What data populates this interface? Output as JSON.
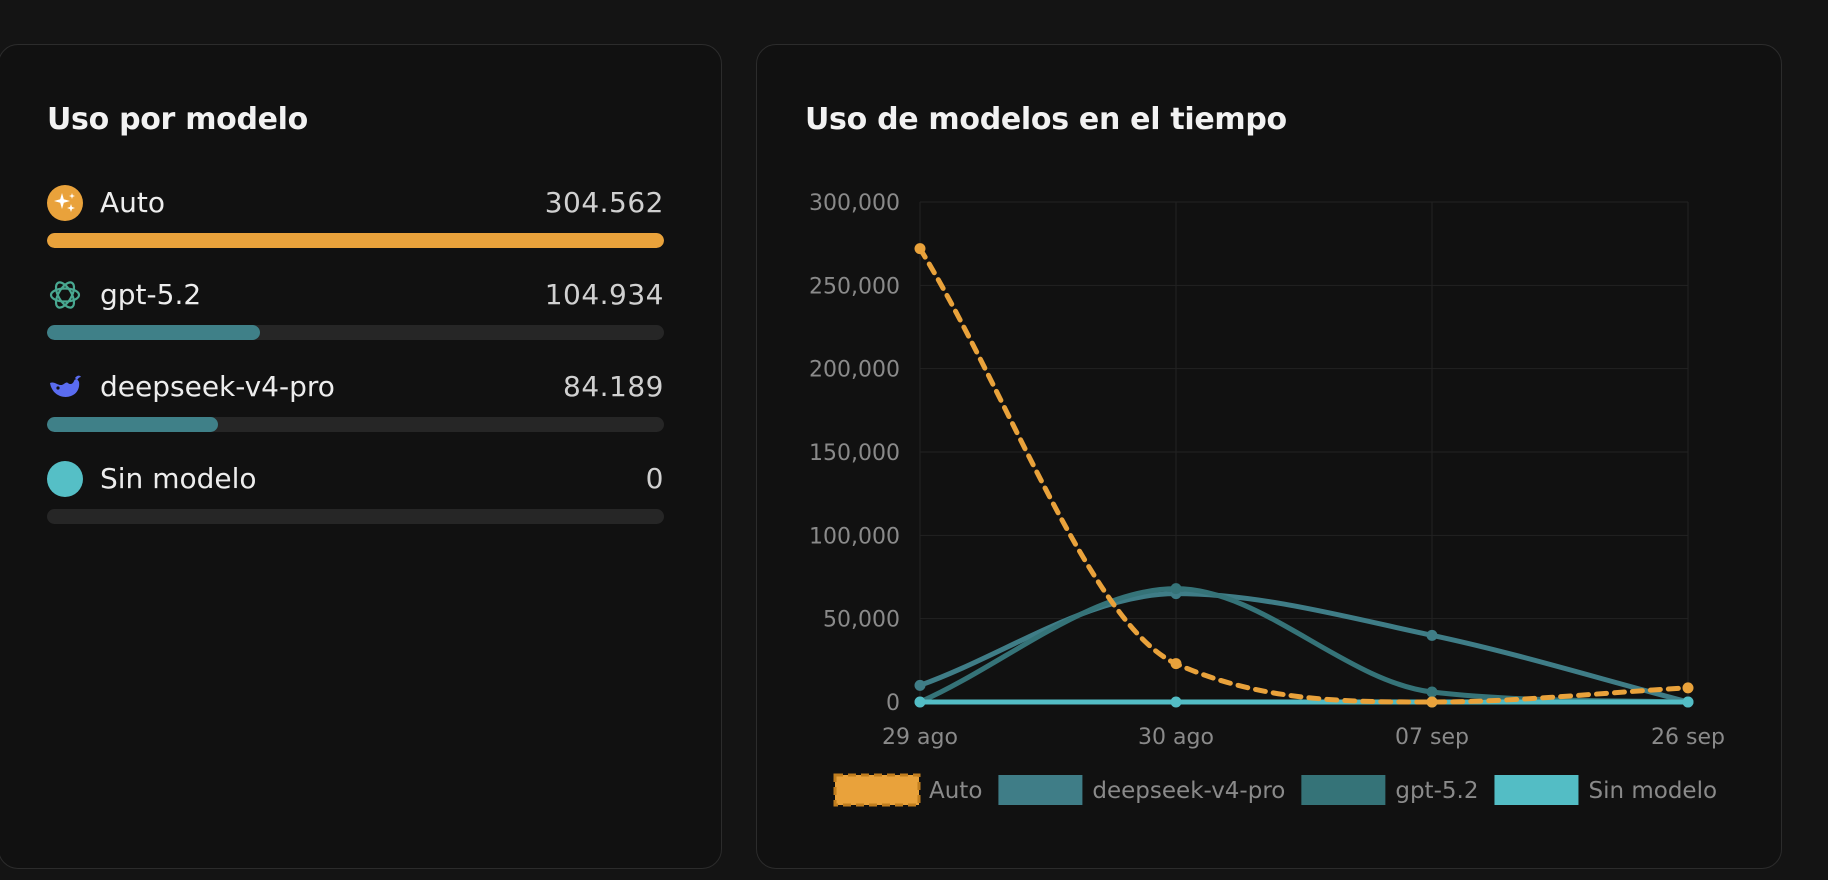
{
  "left_card": {
    "title": "Uso por modelo",
    "max_value": 304562,
    "models": [
      {
        "name": "Auto",
        "value_label": "304.562",
        "value": 304562,
        "icon": "sparkles-icon",
        "color": "#e9a23b"
      },
      {
        "name": "gpt-5.2",
        "value_label": "104.934",
        "value": 104934,
        "icon": "openai-icon",
        "color": "#3f8088"
      },
      {
        "name": "deepseek-v4-pro",
        "value_label": "84.189",
        "value": 84189,
        "icon": "deepseek-whale-icon",
        "color": "#3f8088"
      },
      {
        "name": "Sin modelo",
        "value_label": "0",
        "value": 0,
        "icon": "circle-icon",
        "color": "#55bfc6"
      }
    ]
  },
  "right_card": {
    "title": "Uso de modelos en el tiempo"
  },
  "chart_data": {
    "type": "line",
    "title": "Uso de modelos en el tiempo",
    "x": [
      "29 ago",
      "30 ago",
      "07 sep",
      "26 sep"
    ],
    "ylim": [
      0,
      300000
    ],
    "yticks": [
      0,
      50000,
      100000,
      150000,
      200000,
      250000,
      300000
    ],
    "ytick_labels": [
      "0",
      "50,000",
      "100,000",
      "150,000",
      "200,000",
      "250,000",
      "300,000"
    ],
    "grid": true,
    "legend_position": "bottom",
    "series": [
      {
        "name": "Auto",
        "values": [
          272000,
          23000,
          0,
          8500
        ],
        "color": "#e9a23b",
        "dashed": true
      },
      {
        "name": "deepseek-v4-pro",
        "values": [
          10000,
          65000,
          40000,
          0
        ],
        "color": "#3f7d87",
        "dashed": false
      },
      {
        "name": "gpt-5.2",
        "values": [
          0,
          68000,
          6000,
          0
        ],
        "color": "#357378",
        "dashed": false
      },
      {
        "name": "Sin modelo",
        "values": [
          0,
          0,
          0,
          0
        ],
        "color": "#53bdc5",
        "dashed": false
      }
    ]
  }
}
